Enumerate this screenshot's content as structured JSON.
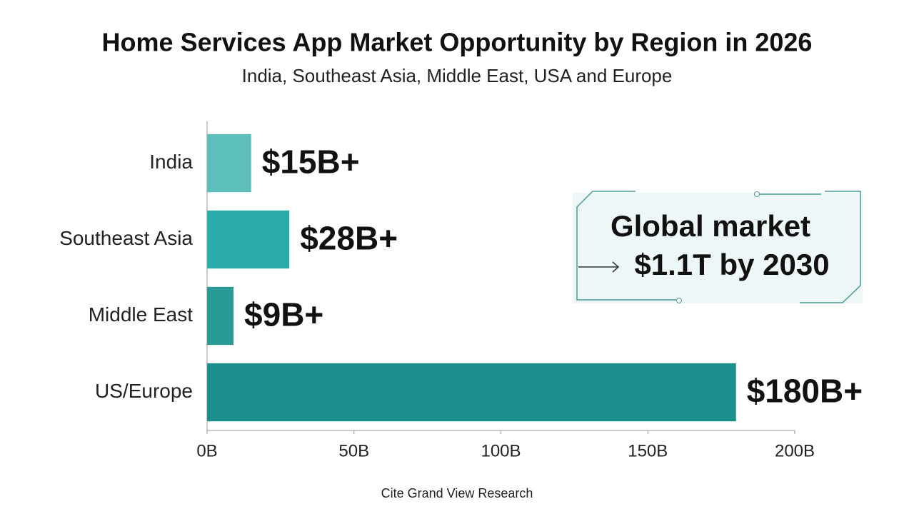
{
  "chart_data": {
    "type": "hbar",
    "title": "Home Services App Market Opportunity by Region in 2026",
    "subtitle": "India, Southeast Asia, Middle East, USA and Europe",
    "categories": [
      "India",
      "Southeast Asia",
      "Middle East",
      "US/Europe"
    ],
    "values": [
      15,
      28,
      9,
      180
    ],
    "value_labels": [
      "$15B+",
      "$28B+",
      "$9B+",
      "$180B+"
    ],
    "colors": [
      "#5cbfbc",
      "#2aabaa",
      "#2a9a97",
      "#1b8f8b"
    ],
    "xlim": [
      0,
      200
    ],
    "xticks": [
      {
        "value": 0,
        "label": "0B"
      },
      {
        "value": 50,
        "label": "50B"
      },
      {
        "value": 100,
        "label": "100B"
      },
      {
        "value": 150,
        "label": "150B"
      },
      {
        "value": 200,
        "label": "200B"
      }
    ],
    "annotation": [
      "Global market",
      "$1.1T by 2030"
    ],
    "source": "Cite Grand View Research"
  }
}
